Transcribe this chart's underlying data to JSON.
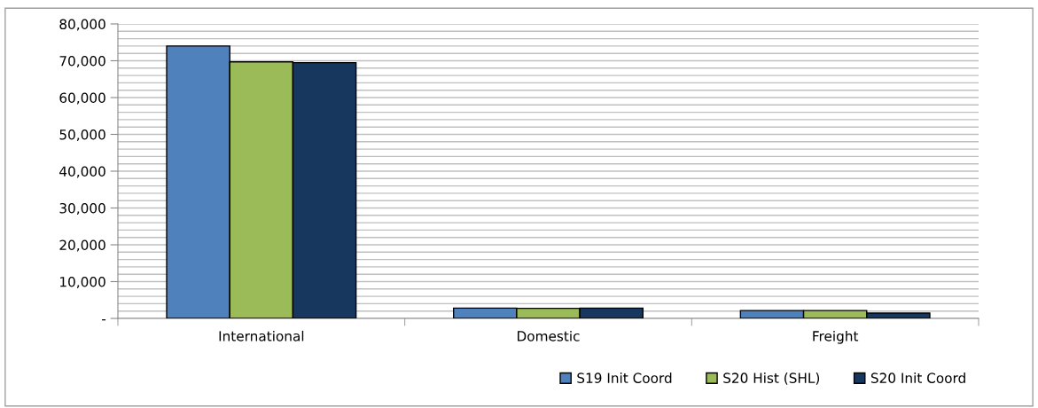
{
  "chart_data": {
    "type": "bar",
    "categories": [
      "International",
      "Domestic",
      "Freight"
    ],
    "series": [
      {
        "name": "S19 Init Coord",
        "color": "#4f81bd",
        "values": [
          74000,
          2800,
          2150
        ]
      },
      {
        "name": "S20 Hist (SHL)",
        "color": "#9bbb59",
        "values": [
          69700,
          2750,
          2150
        ]
      },
      {
        "name": "S20 Init Coord",
        "color": "#17375e",
        "values": [
          69500,
          2800,
          1450
        ]
      }
    ],
    "ylim": [
      0,
      80000
    ],
    "yticks": [
      {
        "value": 0,
        "label": "-"
      },
      {
        "value": 10000,
        "label": "10,000"
      },
      {
        "value": 20000,
        "label": "20,000"
      },
      {
        "value": 30000,
        "label": "30,000"
      },
      {
        "value": 40000,
        "label": "40,000"
      },
      {
        "value": 50000,
        "label": "50,000"
      },
      {
        "value": 60000,
        "label": "60,000"
      },
      {
        "value": 70000,
        "label": "70,000"
      },
      {
        "value": 80000,
        "label": "80,000"
      }
    ],
    "grid": "y",
    "legend": "bottom right"
  }
}
